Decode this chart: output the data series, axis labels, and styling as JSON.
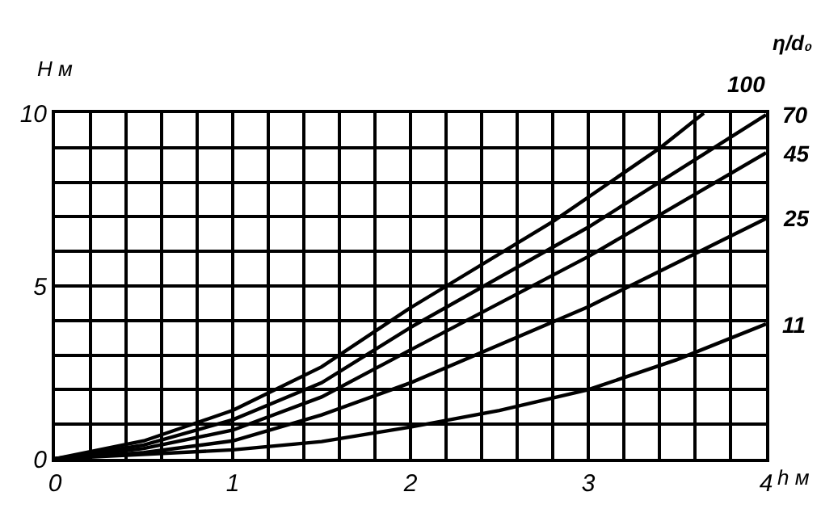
{
  "chart_data": {
    "type": "line",
    "xlabel": "h м",
    "ylabel": "H м",
    "legend_title": "η/d₀",
    "xlim": [
      0,
      4
    ],
    "ylim": [
      0,
      10
    ],
    "xticks": [
      0,
      {
        "value": 0.2,
        "label": null
      },
      {
        "value": 0.4,
        "label": null
      },
      {
        "value": 0.6,
        "label": null
      },
      {
        "value": 0.8,
        "label": null
      },
      1,
      {
        "value": 1.2,
        "label": null
      },
      {
        "value": 1.4,
        "label": null
      },
      {
        "value": 1.6,
        "label": null
      },
      {
        "value": 1.8,
        "label": null
      },
      2,
      {
        "value": 2.2,
        "label": null
      },
      {
        "value": 2.4,
        "label": null
      },
      {
        "value": 2.6,
        "label": null
      },
      {
        "value": 2.8,
        "label": null
      },
      3,
      {
        "value": 3.2,
        "label": null
      },
      {
        "value": 3.4,
        "label": null
      },
      {
        "value": 3.6,
        "label": null
      },
      {
        "value": 3.8,
        "label": null
      },
      4
    ],
    "yticks": [
      0,
      {
        "value": 1,
        "label": null
      },
      {
        "value": 2,
        "label": null
      },
      {
        "value": 3,
        "label": null
      },
      {
        "value": 4,
        "label": null
      },
      5,
      {
        "value": 6,
        "label": null
      },
      {
        "value": 7,
        "label": null
      },
      {
        "value": 8,
        "label": null
      },
      {
        "value": 9,
        "label": null
      },
      10
    ],
    "grid": true,
    "marker": "none",
    "line_style": "solid",
    "series": [
      {
        "name": "100",
        "color": "#000000",
        "x": [
          0,
          0.5,
          1,
          1.5,
          2,
          2.8,
          3.4,
          3.65
        ],
        "values": [
          0,
          0.52,
          1.4,
          2.66,
          4.37,
          6.86,
          8.98,
          10
        ]
      },
      {
        "name": "70",
        "color": "#000000",
        "x": [
          0,
          0.5,
          1,
          1.5,
          2,
          3,
          4
        ],
        "values": [
          0,
          0.4,
          1.13,
          2.2,
          3.8,
          6.7,
          9.95
        ]
      },
      {
        "name": "45",
        "color": "#000000",
        "x": [
          0,
          0.5,
          1,
          1.5,
          2,
          3,
          4
        ],
        "values": [
          0,
          0.3,
          0.83,
          1.79,
          3.15,
          5.85,
          8.85
        ]
      },
      {
        "name": "25",
        "color": "#000000",
        "x": [
          0,
          0.5,
          1,
          1.5,
          2,
          3,
          4
        ],
        "values": [
          0,
          0.18,
          0.52,
          1.27,
          2.2,
          4.4,
          6.95
        ]
      },
      {
        "name": "11",
        "color": "#000000",
        "x": [
          0,
          1,
          1.5,
          2,
          2.5,
          3,
          3.5,
          4
        ],
        "values": [
          0,
          0.26,
          0.5,
          0.92,
          1.4,
          2.0,
          2.87,
          3.9
        ]
      }
    ]
  }
}
